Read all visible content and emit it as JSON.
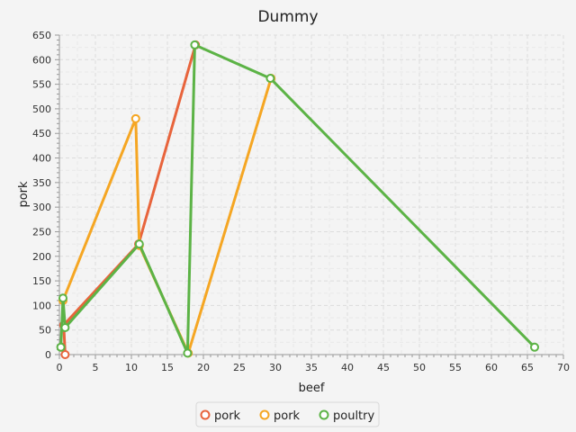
{
  "chart_data": {
    "type": "line",
    "title": "Dummy",
    "xlabel": "beef",
    "ylabel": "pork",
    "xlim": [
      0,
      70
    ],
    "ylim": [
      0,
      650
    ],
    "x_ticks": [
      0,
      5,
      10,
      15,
      20,
      25,
      30,
      35,
      40,
      45,
      50,
      55,
      60,
      65,
      70
    ],
    "y_ticks": [
      0,
      50,
      100,
      150,
      200,
      250,
      300,
      350,
      400,
      450,
      500,
      550,
      600,
      650
    ],
    "grid": true,
    "legend_position": "bottom",
    "series": [
      {
        "name": "pork",
        "color": "#e8643c",
        "points": [
          [
            0.3,
            15
          ],
          [
            0.8,
            0
          ],
          [
            0.6,
            60
          ],
          [
            11.0,
            225
          ],
          [
            18.9,
            630
          ]
        ]
      },
      {
        "name": "pork",
        "color": "#f5a623",
        "points": [
          [
            0.5,
            110
          ],
          [
            10.6,
            480
          ],
          [
            11.1,
            222
          ],
          [
            17.9,
            3
          ],
          [
            29.4,
            562
          ]
        ]
      },
      {
        "name": "poultry",
        "color": "#5cb346",
        "points": [
          [
            0.2,
            15
          ],
          [
            0.5,
            115
          ],
          [
            0.8,
            55
          ],
          [
            11.1,
            225
          ],
          [
            17.8,
            3
          ],
          [
            18.8,
            630
          ],
          [
            29.3,
            562
          ],
          [
            66.0,
            15
          ]
        ]
      }
    ]
  }
}
